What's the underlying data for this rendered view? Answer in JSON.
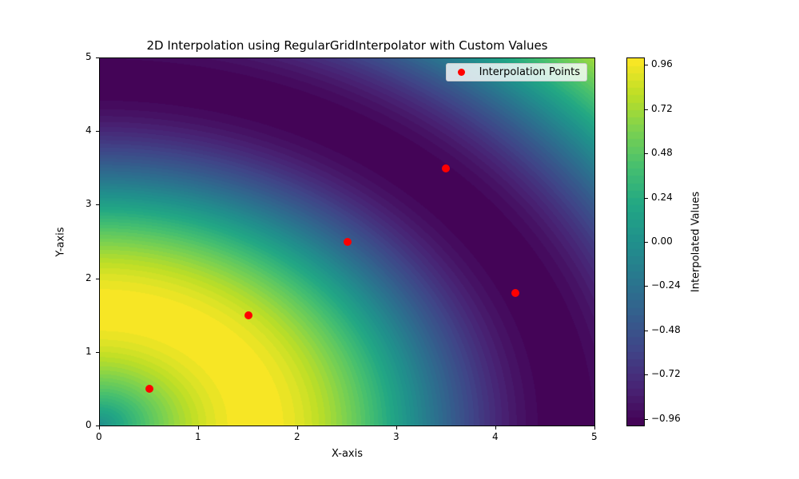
{
  "chart_data": {
    "type": "heatmap",
    "title": "2D Interpolation using RegularGridInterpolator with Custom Values",
    "xlabel": "X-axis",
    "ylabel": "Y-axis",
    "xlim": [
      0,
      5
    ],
    "ylim": [
      0,
      5
    ],
    "x_ticks": [
      "0",
      "1",
      "2",
      "3",
      "4",
      "5"
    ],
    "y_ticks": [
      "0",
      "1",
      "2",
      "3",
      "4",
      "5"
    ],
    "colormap": "viridis",
    "colorbar": {
      "label": "Interpolated Values",
      "range": [
        -1.0,
        1.0
      ],
      "ticks": [
        "0.96",
        "0.72",
        "0.48",
        "0.24",
        "0.00",
        "−0.24",
        "−0.48",
        "−0.72",
        "−0.96"
      ],
      "tick_values": [
        0.96,
        0.72,
        0.48,
        0.24,
        0.0,
        -0.24,
        -0.48,
        -0.72,
        -0.96
      ]
    },
    "legend": {
      "position": "upper right",
      "entries": [
        "Interpolation Points"
      ]
    },
    "interpolation_points": [
      {
        "x": 0.5,
        "y": 0.5
      },
      {
        "x": 1.5,
        "y": 1.5
      },
      {
        "x": 2.5,
        "y": 2.5
      },
      {
        "x": 3.5,
        "y": 3.5
      },
      {
        "x": 4.2,
        "y": 1.8
      }
    ],
    "surface_description": "Filled contour approx. sin(sqrt(x^2+y^2)); max ~1 near (1,1), min ~-1 along arc r~4.7",
    "point_color": "#ff0000"
  }
}
